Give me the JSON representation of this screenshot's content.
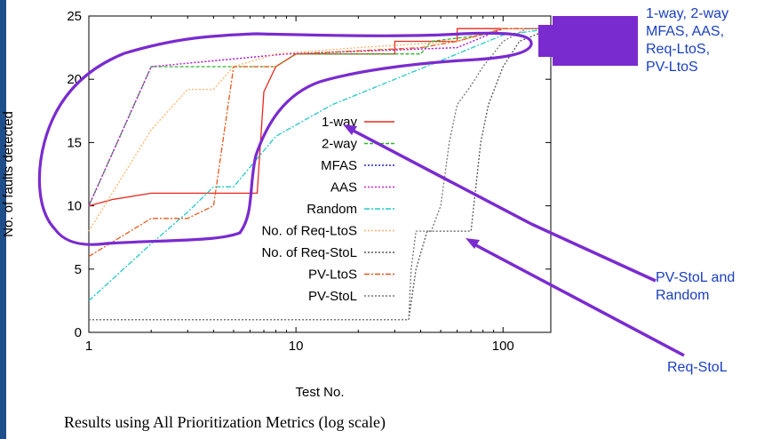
{
  "caption": "Results using All Prioritization Metrics (log scale)",
  "annotations": {
    "top_right": "1-way, 2-way\nMFAS, AAS,\nReq-LtoS,\nPV-LtoS",
    "mid_right": "PV-StoL and\nRandom",
    "bottom_right": "Req-StoL"
  },
  "colors": {
    "annotation": "#1a3fc0",
    "highlight": "#7a2bd0"
  },
  "chart_data": {
    "type": "line",
    "xlabel": "Test No.",
    "ylabel": "No. of faults detected",
    "xscale": "log",
    "xlim": [
      1,
      170
    ],
    "ylim": [
      0,
      25
    ],
    "xticks": [
      1,
      10,
      100
    ],
    "xtick_labels": [
      "1",
      "10",
      "100"
    ],
    "yticks": [
      0,
      5,
      10,
      15,
      20,
      25
    ],
    "ytick_labels": [
      "0",
      "5",
      "10",
      "15",
      "20",
      "25"
    ],
    "grid": false,
    "legend_position": "center-right",
    "series": [
      {
        "name": "1-way",
        "color": "#e8281e",
        "dash": "",
        "points": [
          [
            1,
            10
          ],
          [
            1.3,
            10.5
          ],
          [
            2,
            11
          ],
          [
            3,
            11
          ],
          [
            6.5,
            11
          ],
          [
            7,
            19
          ],
          [
            8,
            21
          ],
          [
            10,
            22
          ],
          [
            30,
            22
          ],
          [
            30,
            23
          ],
          [
            60,
            23
          ],
          [
            60,
            24
          ],
          [
            170,
            24
          ]
        ]
      },
      {
        "name": "2-way",
        "color": "#2db52d",
        "dash": "4,2",
        "points": [
          [
            1,
            10
          ],
          [
            2,
            21
          ],
          [
            8,
            21
          ],
          [
            10,
            22
          ],
          [
            40,
            22
          ],
          [
            45,
            23
          ],
          [
            80,
            23.5
          ],
          [
            100,
            24
          ],
          [
            170,
            24
          ]
        ]
      },
      {
        "name": "MFAS",
        "color": "#2222cc",
        "dash": "2,2",
        "points": [
          [
            1,
            10
          ],
          [
            2,
            21
          ],
          [
            9,
            22
          ],
          [
            60,
            22.5
          ],
          [
            100,
            24
          ],
          [
            170,
            24
          ]
        ]
      },
      {
        "name": "AAS",
        "color": "#d020d0",
        "dash": "2,2",
        "points": [
          [
            1,
            10
          ],
          [
            2,
            21
          ],
          [
            9,
            22
          ],
          [
            60,
            22.5
          ],
          [
            100,
            24
          ],
          [
            170,
            24
          ]
        ]
      },
      {
        "name": "Random",
        "color": "#22c8c8",
        "dash": "6,2,2,2",
        "points": [
          [
            1,
            2.5
          ],
          [
            2,
            7
          ],
          [
            3,
            9.5
          ],
          [
            4,
            11.5
          ],
          [
            5,
            11.5
          ],
          [
            8,
            15.5
          ],
          [
            15,
            18
          ],
          [
            30,
            20
          ],
          [
            60,
            22
          ],
          [
            100,
            23.5
          ],
          [
            170,
            24
          ]
        ]
      },
      {
        "name": "No. of Req-LtoS",
        "color": "#ffb36a",
        "dash": "2,2",
        "points": [
          [
            1,
            8
          ],
          [
            2,
            16
          ],
          [
            3,
            19.2
          ],
          [
            4,
            19.2
          ],
          [
            5,
            21
          ],
          [
            8,
            22
          ],
          [
            20,
            22.5
          ],
          [
            60,
            23
          ],
          [
            100,
            24
          ],
          [
            170,
            24
          ]
        ]
      },
      {
        "name": "No. of Req-StoL",
        "color": "#555555",
        "dash": "2,2",
        "points": [
          [
            1,
            1
          ],
          [
            35,
            1
          ],
          [
            38,
            5
          ],
          [
            43,
            8
          ],
          [
            70,
            8
          ],
          [
            78,
            15
          ],
          [
            85,
            18
          ],
          [
            100,
            21
          ],
          [
            120,
            23
          ],
          [
            170,
            24
          ]
        ]
      },
      {
        "name": "PV-LtoS",
        "color": "#e8581e",
        "dash": "6,2,2,2",
        "points": [
          [
            1,
            6
          ],
          [
            2,
            9
          ],
          [
            3,
            9
          ],
          [
            4,
            10
          ],
          [
            5,
            21
          ],
          [
            8,
            21
          ],
          [
            10,
            22
          ],
          [
            40,
            22.5
          ],
          [
            60,
            23
          ],
          [
            100,
            24
          ],
          [
            170,
            24
          ]
        ]
      },
      {
        "name": "PV-StoL",
        "color": "#777777",
        "dash": "2,2",
        "points": [
          [
            1,
            1
          ],
          [
            35,
            1
          ],
          [
            36,
            5
          ],
          [
            38,
            8
          ],
          [
            45,
            8
          ],
          [
            50,
            10
          ],
          [
            55,
            15
          ],
          [
            60,
            18
          ],
          [
            70,
            19.5
          ],
          [
            80,
            21
          ],
          [
            100,
            23
          ],
          [
            130,
            24
          ],
          [
            170,
            24
          ]
        ]
      }
    ]
  }
}
